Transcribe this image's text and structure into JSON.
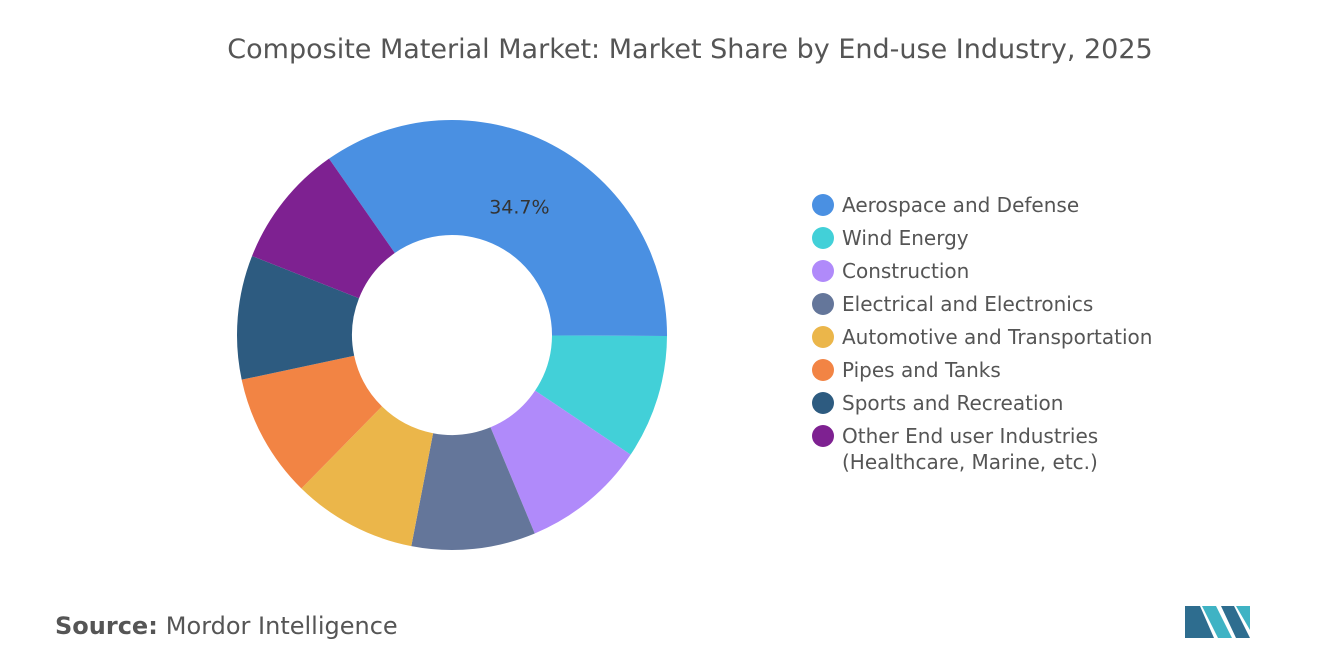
{
  "chart_data": {
    "type": "donut",
    "title": "Composite Material Market: Market Share by End-use Industry, 2025",
    "categories": [
      "Aerospace and Defense",
      "Wind Energy",
      "Construction",
      "Electrical and Electronics",
      "Automotive and Transportation",
      "Pipes and Tanks",
      "Sports and Recreation",
      "Other End user Industries (Healthcare, Marine, etc.)"
    ],
    "values": [
      34.7,
      9.3,
      9.3,
      9.3,
      9.3,
      9.3,
      9.3,
      9.3
    ],
    "value_labels": [
      "34.7%",
      null,
      null,
      null,
      null,
      null,
      null,
      null
    ],
    "colors": [
      "#4a90e2",
      "#42d0d8",
      "#b08afa",
      "#64769a",
      "#ebb64a",
      "#f28444",
      "#2d5b80",
      "#7e2191"
    ],
    "legend": "right"
  },
  "source_label": "Source:",
  "source": "Mordor Intelligence"
}
